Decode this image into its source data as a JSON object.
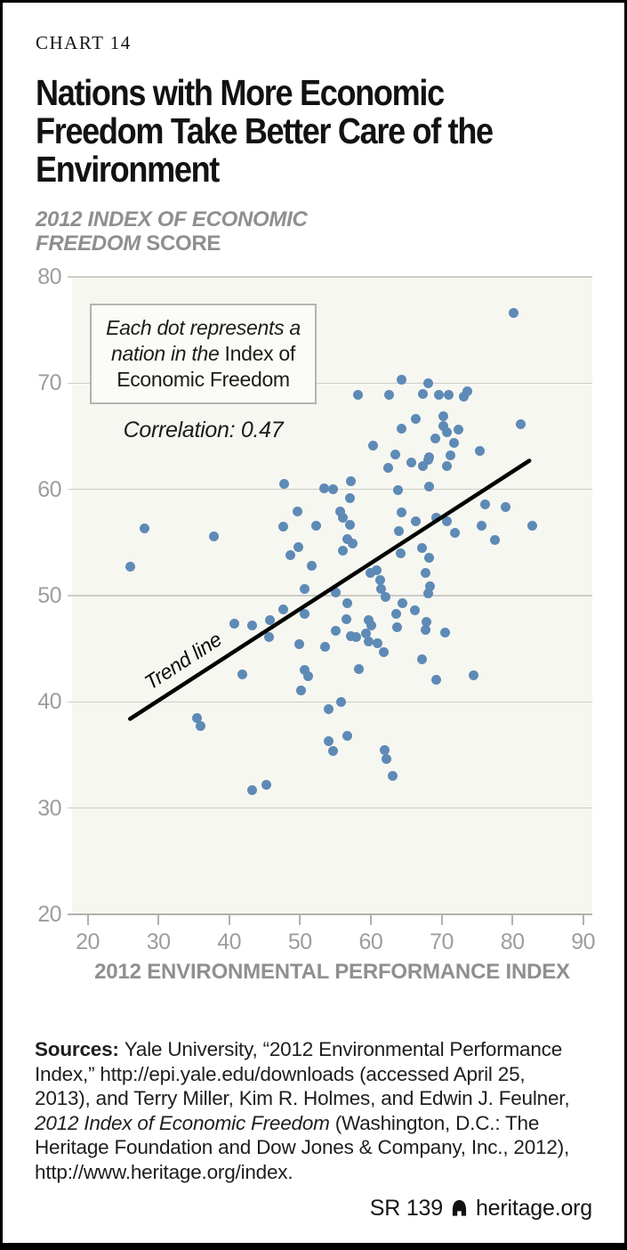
{
  "header": {
    "kicker": "CHART 14",
    "title_lines": [
      "Nations with More Economic",
      "Freedom Take Better Care of the",
      "Environment"
    ],
    "subtitle_line1_italic": "2012 INDEX OF ECONOMIC",
    "subtitle_line2_italic": "FREEDOM",
    "subtitle_line2_regular": " SCORE"
  },
  "annotation": {
    "line1": "Each dot represents a",
    "line2_italic": "nation in the ",
    "line2_regular": "Index of",
    "line3": "Economic Freedom",
    "correlation_label": "Correlation: 0.47"
  },
  "chart_data": {
    "type": "scatter",
    "title": "Nations with More Economic Freedom Take Better Care of the Environment",
    "xlabel": "2012 ENVIRONMENTAL PERFORMANCE INDEX",
    "ylabel": "2012 INDEX OF ECONOMIC FREEDOM SCORE",
    "xlim": [
      20,
      90
    ],
    "ylim": [
      20,
      80
    ],
    "x_ticks": [
      20,
      30,
      40,
      50,
      60,
      70,
      80,
      90
    ],
    "y_ticks": [
      20,
      30,
      40,
      50,
      60,
      70,
      80
    ],
    "grid": "horizontal",
    "correlation": 0.47,
    "point_color": "#5e8ab6",
    "trend_line": {
      "label": "Trend line",
      "x1": 26.0,
      "y1": 38.4,
      "x2": 82.4,
      "y2": 62.7
    },
    "points": [
      [
        26.0,
        52.7
      ],
      [
        28.0,
        56.3
      ],
      [
        37.8,
        55.6
      ],
      [
        47.8,
        60.5
      ],
      [
        47.7,
        56.5
      ],
      [
        49.7,
        57.9
      ],
      [
        52.3,
        56.6
      ],
      [
        48.6,
        53.8
      ],
      [
        49.8,
        54.6
      ],
      [
        51.6,
        52.8
      ],
      [
        50.6,
        50.6
      ],
      [
        80.2,
        76.6
      ],
      [
        64.4,
        70.3
      ],
      [
        68.1,
        70.0
      ],
      [
        58.2,
        68.9
      ],
      [
        62.6,
        68.9
      ],
      [
        67.3,
        69.0
      ],
      [
        69.6,
        68.9
      ],
      [
        71.0,
        68.9
      ],
      [
        73.2,
        68.7
      ],
      [
        73.7,
        69.2
      ],
      [
        66.3,
        66.6
      ],
      [
        70.3,
        66.9
      ],
      [
        70.3,
        66.0
      ],
      [
        64.4,
        65.7
      ],
      [
        70.7,
        65.4
      ],
      [
        72.4,
        65.6
      ],
      [
        81.2,
        66.1
      ],
      [
        69.1,
        64.8
      ],
      [
        60.3,
        64.1
      ],
      [
        71.8,
        64.4
      ],
      [
        63.5,
        63.3
      ],
      [
        71.2,
        63.2
      ],
      [
        75.4,
        63.6
      ],
      [
        68.3,
        63.0
      ],
      [
        62.4,
        62.0
      ],
      [
        65.7,
        62.5
      ],
      [
        67.3,
        62.2
      ],
      [
        68.1,
        62.8
      ],
      [
        70.8,
        62.2
      ],
      [
        57.2,
        60.8
      ],
      [
        54.7,
        60.0
      ],
      [
        53.4,
        60.1
      ],
      [
        57.0,
        59.2
      ],
      [
        63.9,
        59.9
      ],
      [
        68.2,
        60.3
      ],
      [
        55.7,
        57.9
      ],
      [
        56.0,
        57.3
      ],
      [
        57.0,
        56.7
      ],
      [
        64.4,
        57.8
      ],
      [
        76.1,
        58.6
      ],
      [
        79.1,
        58.3
      ],
      [
        56.7,
        55.3
      ],
      [
        57.4,
        54.9
      ],
      [
        66.3,
        57.0
      ],
      [
        64.0,
        56.1
      ],
      [
        69.3,
        57.3
      ],
      [
        70.8,
        57.0
      ],
      [
        75.6,
        56.6
      ],
      [
        82.8,
        56.6
      ],
      [
        71.9,
        55.9
      ],
      [
        77.6,
        55.2
      ],
      [
        56.1,
        54.2
      ],
      [
        59.9,
        52.1
      ],
      [
        60.8,
        52.4
      ],
      [
        64.2,
        54.0
      ],
      [
        67.2,
        54.5
      ],
      [
        67.7,
        52.1
      ],
      [
        68.2,
        53.6
      ],
      [
        61.3,
        51.5
      ],
      [
        61.5,
        50.6
      ],
      [
        62.1,
        49.9
      ],
      [
        68.4,
        50.9
      ],
      [
        68.1,
        50.2
      ],
      [
        55.1,
        50.3
      ],
      [
        56.7,
        49.3
      ],
      [
        64.5,
        49.3
      ],
      [
        63.6,
        48.3
      ],
      [
        66.2,
        48.6
      ],
      [
        56.5,
        47.8
      ],
      [
        59.7,
        47.7
      ],
      [
        60.1,
        47.2
      ],
      [
        55.0,
        46.7
      ],
      [
        57.2,
        46.2
      ],
      [
        57.9,
        46.1
      ],
      [
        59.3,
        46.4
      ],
      [
        59.7,
        45.7
      ],
      [
        63.7,
        47.0
      ],
      [
        67.9,
        47.5
      ],
      [
        67.8,
        46.8
      ],
      [
        70.5,
        46.5
      ],
      [
        53.6,
        45.2
      ],
      [
        61.0,
        45.5
      ],
      [
        61.8,
        44.7
      ],
      [
        67.2,
        44.0
      ],
      [
        58.3,
        43.1
      ],
      [
        69.3,
        42.1
      ],
      [
        74.5,
        42.5
      ],
      [
        55.8,
        40.0
      ],
      [
        54.0,
        39.3
      ],
      [
        56.7,
        36.8
      ],
      [
        54.1,
        36.3
      ],
      [
        54.7,
        35.4
      ],
      [
        61.9,
        35.5
      ],
      [
        62.2,
        34.6
      ],
      [
        63.1,
        33.0
      ],
      [
        40.7,
        47.4
      ],
      [
        43.2,
        47.2
      ],
      [
        45.8,
        47.7
      ],
      [
        45.6,
        46.1
      ],
      [
        47.6,
        48.7
      ],
      [
        50.7,
        48.3
      ],
      [
        49.9,
        45.4
      ],
      [
        41.8,
        42.6
      ],
      [
        50.6,
        43.0
      ],
      [
        51.2,
        42.4
      ],
      [
        50.2,
        41.1
      ],
      [
        35.5,
        38.5
      ],
      [
        36.0,
        37.7
      ],
      [
        43.2,
        31.7
      ],
      [
        45.3,
        32.2
      ]
    ]
  },
  "sources": {
    "label": "Sources: ",
    "part1": "Yale University, “2012 Environmental Performance Index,” http://epi.yale.edu/downloads (accessed April 25, 2013), and Terry Miller, Kim R. Holmes, and Edwin J. Feulner, ",
    "italic": "2012 Index of Economic Freedom",
    "part2": " (Washington, D.C.: The Heritage Foundation and Dow Jones & Company, Inc., 2012), http://www.heritage.org/index."
  },
  "footer": {
    "report_id": "SR 139",
    "site": "heritage.org"
  },
  "colors": {
    "dot": "#5e8ab6",
    "plot_background": "#f7f7f1",
    "gridline": "#cdcdc7",
    "axis": "#b2b2ac",
    "subtitle_gray": "#8f8f8f",
    "tick_label_gray": "#9d9d9d",
    "trend_line": "#000000"
  }
}
